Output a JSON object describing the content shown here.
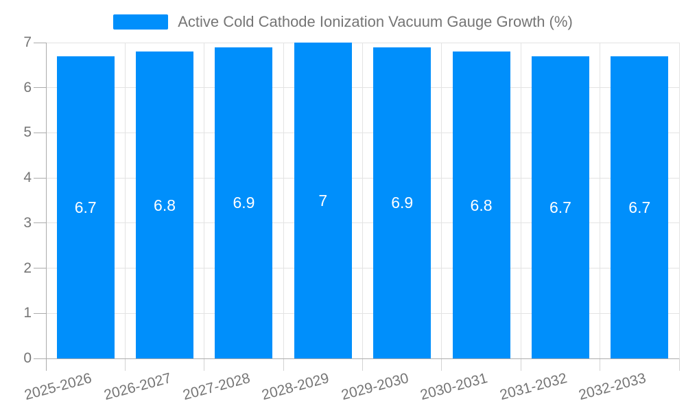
{
  "legend": {
    "label": "Active Cold Cathode Ionization Vacuum Gauge Growth (%)"
  },
  "chart_data": {
    "type": "bar",
    "title": "Active Cold Cathode Ionization Vacuum Gauge Growth (%)",
    "categories": [
      "2025-2026",
      "2026-2027",
      "2027-2028",
      "2028-2029",
      "2029-2030",
      "2030-2031",
      "2031-2032",
      "2032-2033"
    ],
    "values": [
      6.7,
      6.8,
      6.9,
      7,
      6.9,
      6.8,
      6.7,
      6.7
    ],
    "data_labels": [
      "6.7",
      "6.8",
      "6.9",
      "7",
      "6.9",
      "6.8",
      "6.7",
      "6.7"
    ],
    "y_ticks": [
      0,
      1,
      2,
      3,
      4,
      5,
      6,
      7
    ],
    "ylim": [
      0,
      7
    ],
    "xlabel": "",
    "ylabel": "",
    "grid": true,
    "legend_position": "top-center",
    "x_label_rotation_deg": -15,
    "colors": {
      "bar": "#008FFB",
      "axis_text": "#757575",
      "value_label_text": "#ffffff",
      "gridline": "#e3e3e3",
      "axis_line": "#ababab",
      "minor_tick": "#d2d2d2"
    }
  }
}
